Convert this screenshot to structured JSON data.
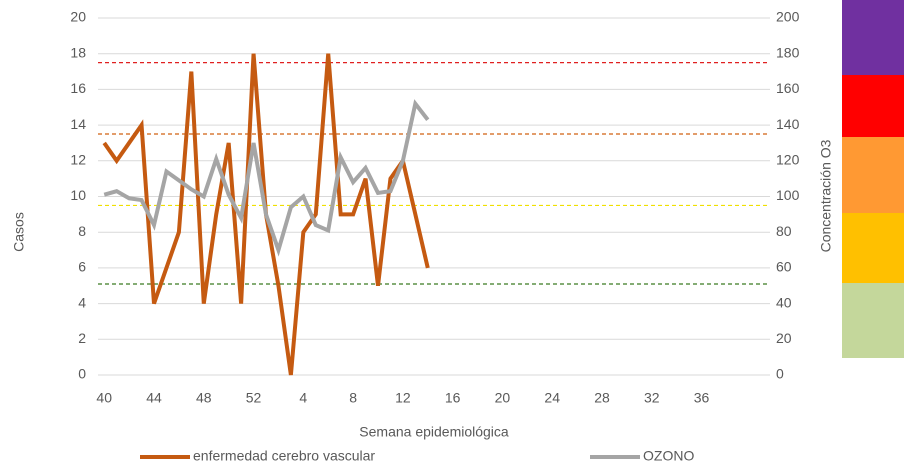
{
  "chart_data": {
    "type": "line",
    "x_label": "Semana epidemiológica",
    "y_label": "Casos",
    "y2_label": "Concentración O3",
    "categories": [
      40,
      null,
      null,
      null,
      44,
      null,
      null,
      null,
      48,
      null,
      null,
      null,
      52,
      null,
      null,
      null,
      4,
      null,
      null,
      null,
      8,
      null,
      null,
      null,
      12,
      null,
      null,
      null,
      16,
      null,
      null,
      null,
      20,
      null,
      null,
      null,
      24,
      null,
      null,
      null,
      28,
      null,
      null,
      null,
      32,
      null,
      null,
      null,
      36,
      null,
      null,
      null,
      null,
      null
    ],
    "series": [
      {
        "name": "enfermedad cerebro vascular",
        "color": "#c55a11",
        "axis": "y",
        "values": [
          13,
          12,
          13,
          14,
          4,
          6,
          8,
          17,
          4,
          9,
          13,
          4,
          18,
          9,
          5,
          0,
          8,
          9,
          18,
          9,
          9,
          11,
          5,
          11,
          12,
          9,
          6,
          null,
          null,
          null,
          null,
          null,
          null,
          null,
          null,
          null,
          null,
          null,
          null,
          null,
          null,
          null,
          null,
          null,
          null,
          null,
          null,
          null,
          null,
          null,
          null,
          null,
          null,
          null
        ]
      },
      {
        "name": "OZONO",
        "color": "#a5a5a5",
        "axis": "y2",
        "values": [
          101,
          103,
          99,
          98,
          84,
          114,
          109,
          104,
          100,
          121,
          101,
          88,
          130,
          90,
          70,
          94,
          100,
          84,
          81,
          122,
          108,
          116,
          102,
          103,
          120,
          152,
          143,
          null,
          null,
          null,
          null,
          null,
          null,
          null,
          null,
          null,
          null,
          null,
          null,
          null,
          null,
          null,
          null,
          null,
          null,
          null,
          null,
          null,
          null,
          null,
          null,
          null,
          null,
          null
        ]
      }
    ],
    "reference_lines": [
      {
        "value": 175,
        "color": "#e02020",
        "axis": "y2"
      },
      {
        "value": 135,
        "color": "#d06010",
        "axis": "y2"
      },
      {
        "value": 95,
        "color": "#f0e000",
        "axis": "y2"
      },
      {
        "value": 51,
        "color": "#3a7a20",
        "axis": "y2"
      }
    ],
    "ylim": [
      0,
      20
    ],
    "yticks": [
      0,
      2,
      4,
      6,
      8,
      10,
      12,
      14,
      16,
      18,
      20
    ],
    "y2lim": [
      0,
      200
    ],
    "y2ticks": [
      0,
      20,
      40,
      60,
      80,
      100,
      120,
      140,
      160,
      180,
      200
    ],
    "grid": true,
    "legend": "bottom"
  }
}
